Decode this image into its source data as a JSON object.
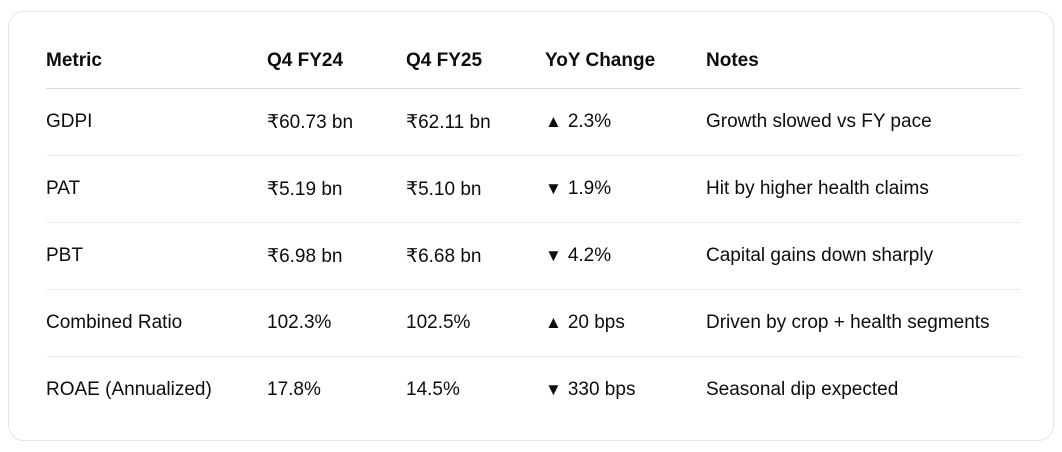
{
  "table": {
    "headers": [
      "Metric",
      "Q4 FY24",
      "Q4 FY25",
      "YoY Change",
      "Notes"
    ],
    "rows": [
      {
        "metric": "GDPI",
        "q4fy24": "₹60.73 bn",
        "q4fy25": "₹62.11 bn",
        "yoy_arrow": "▲",
        "yoy_value": "2.3%",
        "notes": "Growth slowed vs FY pace"
      },
      {
        "metric": "PAT",
        "q4fy24": "₹5.19 bn",
        "q4fy25": "₹5.10 bn",
        "yoy_arrow": "▼",
        "yoy_value": "1.9%",
        "notes": "Hit by higher health claims"
      },
      {
        "metric": "PBT",
        "q4fy24": "₹6.98 bn",
        "q4fy25": "₹6.68 bn",
        "yoy_arrow": "▼",
        "yoy_value": "4.2%",
        "notes": "Capital gains down sharply"
      },
      {
        "metric": "Combined Ratio",
        "q4fy24": "102.3%",
        "q4fy25": "102.5%",
        "yoy_arrow": "▲",
        "yoy_value": "20 bps",
        "notes": "Driven by crop + health segments"
      },
      {
        "metric": "ROAE (Annualized)",
        "q4fy24": "17.8%",
        "q4fy25": "14.5%",
        "yoy_arrow": "▼",
        "yoy_value": "330 bps",
        "notes": "Seasonal dip expected"
      }
    ]
  }
}
